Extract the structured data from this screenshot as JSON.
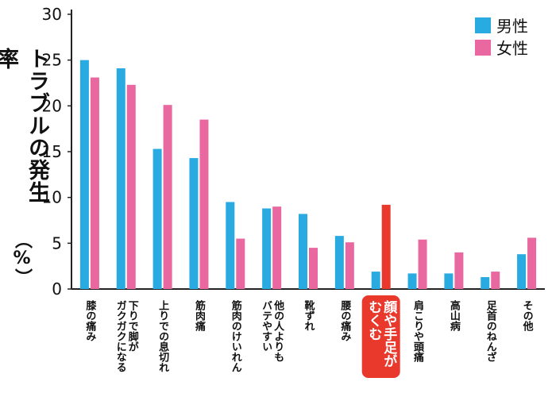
{
  "chart_data": {
    "type": "bar",
    "ylabel": "トラブルの発生率",
    "ylabel_unit": "（%）",
    "ylim": [
      0,
      30
    ],
    "yticks": [
      0,
      5,
      10,
      15,
      20,
      25,
      30
    ],
    "grid": false,
    "legend_position": "top-right",
    "categories": [
      "膝の痛み",
      "下りで脚が\nガクガクになる",
      "上りでの息切れ",
      "筋肉痛",
      "筋肉のけいれん",
      "他の人よりも\nバテやすい",
      "靴ずれ",
      "腰の痛み",
      "顔や手足が\nむくむ",
      "肩こりや頭痛",
      "高山病",
      "足首のねんざ",
      "その他"
    ],
    "highlight_category_index": 8,
    "series": [
      {
        "name": "男性",
        "color": "#29abe2",
        "values": [
          25.0,
          24.1,
          15.3,
          14.3,
          9.5,
          8.8,
          8.2,
          5.8,
          1.9,
          1.7,
          1.7,
          1.3,
          3.8
        ]
      },
      {
        "name": "女性",
        "color": "#e8689f",
        "values": [
          23.1,
          22.3,
          20.1,
          18.5,
          5.5,
          9.0,
          4.5,
          5.1,
          9.2,
          5.4,
          4.0,
          1.9,
          5.6
        ]
      }
    ],
    "highlight_bar_color": "#e8392c",
    "highlight_label_bg": "#e8392c"
  }
}
